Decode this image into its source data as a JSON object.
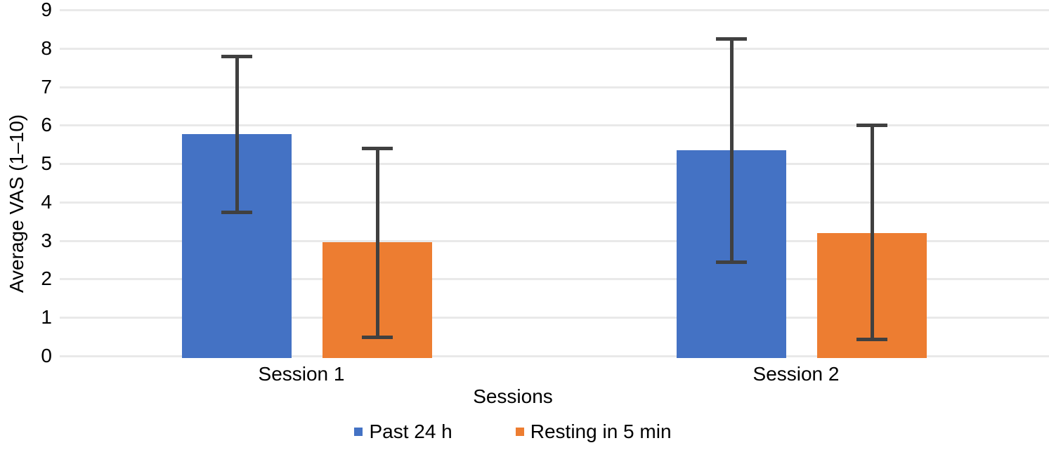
{
  "chart_data": {
    "type": "bar",
    "title": "",
    "xlabel": "Sessions",
    "ylabel": "Average VAS (1–10)",
    "categories": [
      "Session 1",
      "Session 2"
    ],
    "series": [
      {
        "name": "Past 24 h",
        "color": "#4472C4",
        "values": [
          5.77,
          5.35
        ],
        "error_low": [
          3.74,
          2.45
        ],
        "error_high": [
          7.8,
          8.26
        ]
      },
      {
        "name": "Resting in 5 min",
        "color": "#ED7D31",
        "values": [
          2.95,
          3.2
        ],
        "error_low": [
          0.49,
          0.43
        ],
        "error_high": [
          5.41,
          6.01
        ]
      }
    ],
    "ylim": [
      0,
      9
    ],
    "ytick_step": 1,
    "grid": "horizontal",
    "legend_position": "bottom",
    "error_bar_color": "#404040",
    "gridline_color": "#E9E9E9",
    "text_color": "#000000"
  }
}
